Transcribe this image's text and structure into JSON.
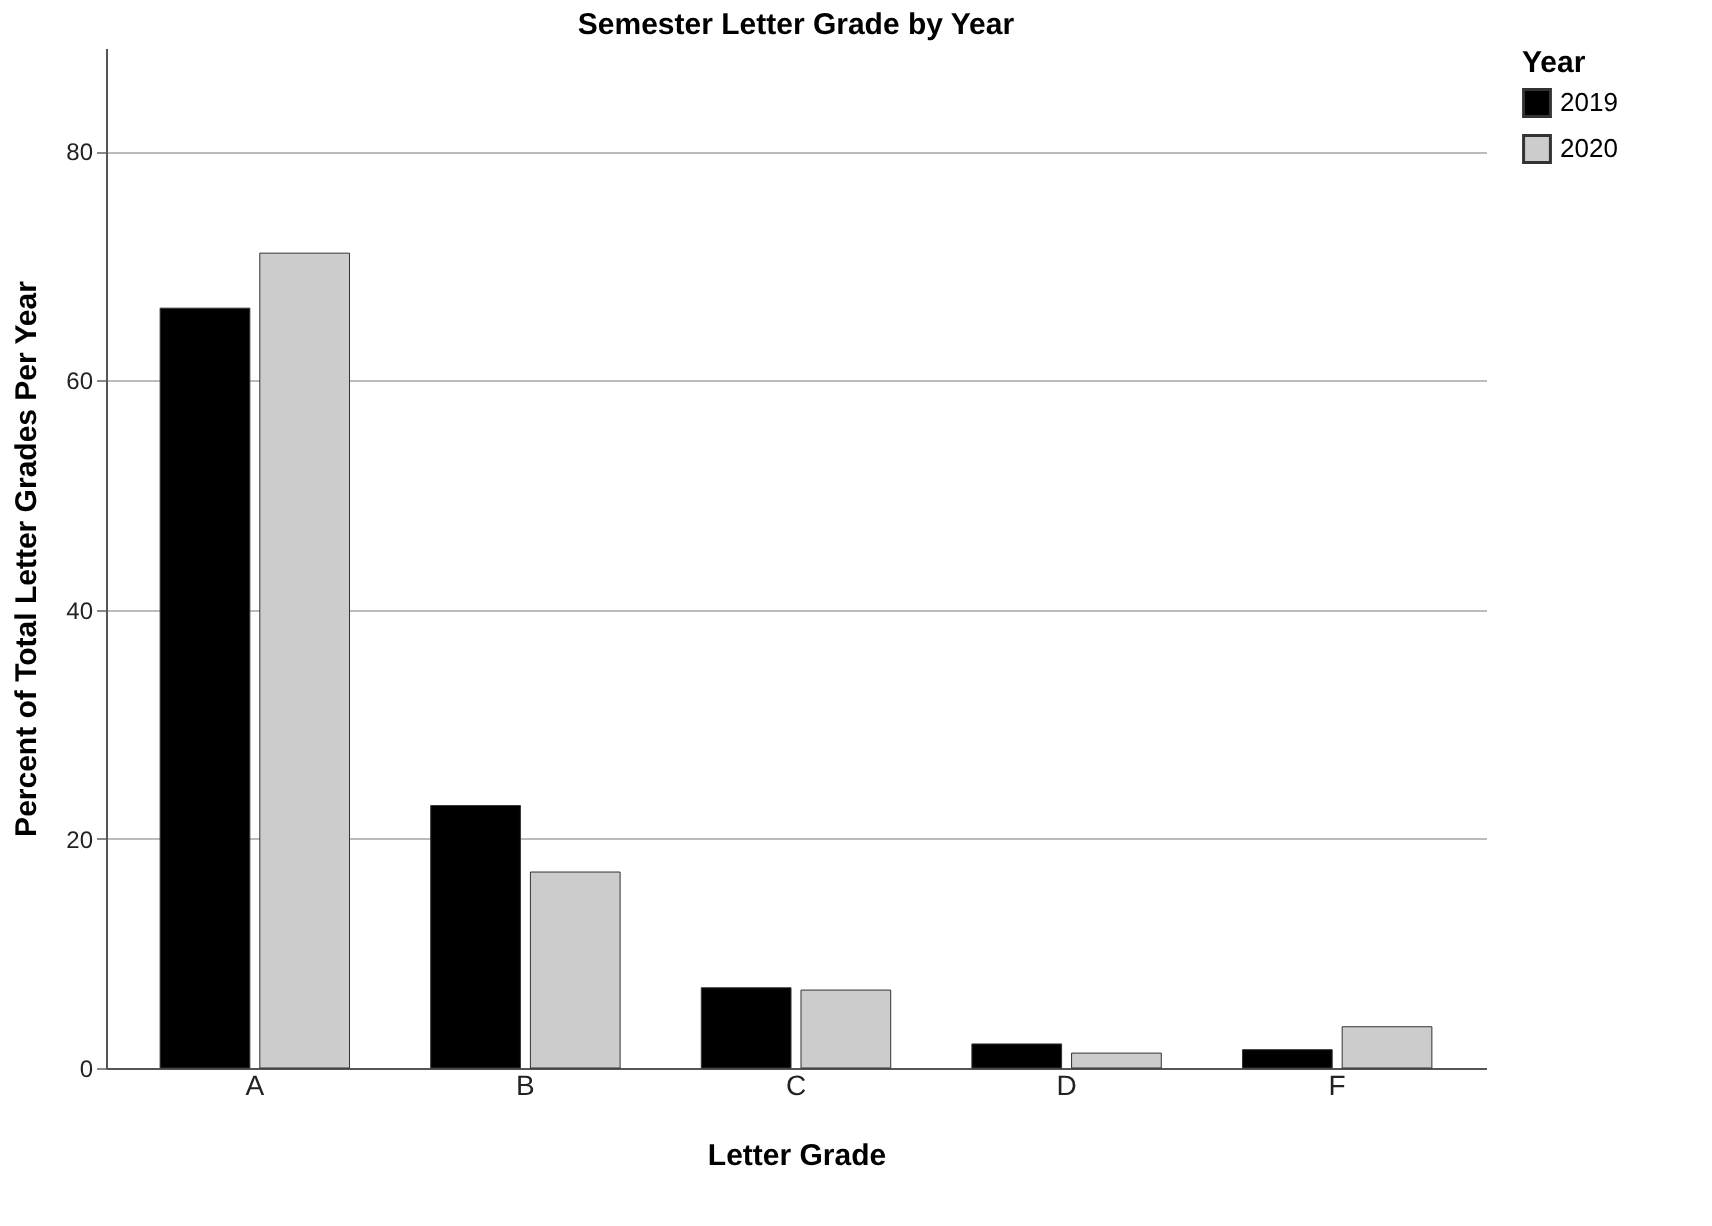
{
  "chart_data": {
    "type": "bar",
    "title": "Semester Letter Grade by Year",
    "xlabel": "Letter Grade",
    "ylabel": "Percent of Total Letter Grades Per Year",
    "legend_title": "Year",
    "categories": [
      "A",
      "B",
      "C",
      "D",
      "F"
    ],
    "series": [
      {
        "name": "2019",
        "color": "#000000",
        "values": [
          66.3,
          22.9,
          7.0,
          2.1,
          1.6
        ]
      },
      {
        "name": "2020",
        "color": "#cccccc",
        "values": [
          71.1,
          17.1,
          6.8,
          1.3,
          3.6
        ]
      }
    ],
    "ylim": [
      0,
      89
    ],
    "yticks": [
      0,
      20,
      40,
      60,
      80
    ],
    "grid": "y",
    "legend": "top right"
  }
}
